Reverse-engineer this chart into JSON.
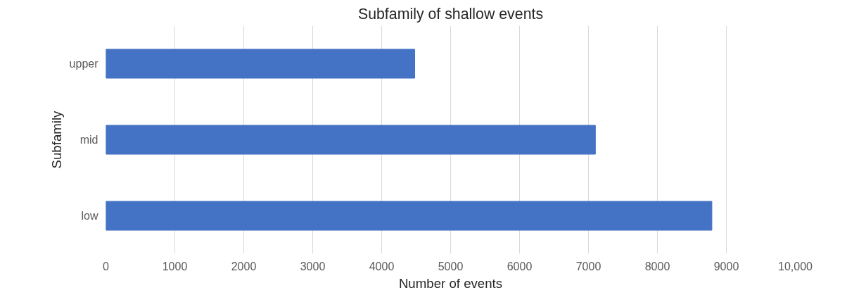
{
  "chart_data": {
    "type": "bar",
    "orientation": "horizontal",
    "title": "Subfamily of shallow events",
    "xlabel": "Number of events",
    "ylabel": "Subfamily",
    "categories": [
      "upper",
      "mid",
      "low"
    ],
    "values": [
      4480,
      7100,
      8790
    ],
    "color": "#4472c4",
    "xlim": [
      0,
      10000
    ],
    "xticks": [
      0,
      1000,
      2000,
      3000,
      4000,
      5000,
      6000,
      7000,
      8000,
      9000,
      {
        "value": 10000,
        "label": "10,000"
      }
    ],
    "grid": "x"
  }
}
